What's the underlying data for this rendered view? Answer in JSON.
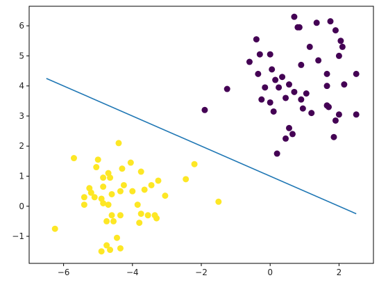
{
  "chart_data": {
    "type": "scatter",
    "title": "",
    "xlabel": "",
    "ylabel": "",
    "xlim": [
      -7.0,
      3.0
    ],
    "ylim": [
      -1.9,
      6.65
    ],
    "x_ticks": [
      -6,
      -4,
      -2,
      0,
      2
    ],
    "x_tick_labels": [
      "−6",
      "−4",
      "−2",
      "0",
      "2"
    ],
    "y_ticks": [
      -1,
      0,
      1,
      2,
      3,
      4,
      5,
      6
    ],
    "y_tick_labels": [
      "−1",
      "0",
      "1",
      "2",
      "3",
      "4",
      "5",
      "6"
    ],
    "grid": false,
    "legend": "none",
    "series": [
      {
        "color": "#440154",
        "marker": "circle",
        "points": [
          [
            0.7,
            6.3
          ],
          [
            1.75,
            6.15
          ],
          [
            1.35,
            6.1
          ],
          [
            0.8,
            5.95
          ],
          [
            0.85,
            5.95
          ],
          [
            1.9,
            5.85
          ],
          [
            -0.4,
            5.55
          ],
          [
            2.05,
            5.5
          ],
          [
            2.1,
            5.3
          ],
          [
            1.15,
            5.3
          ],
          [
            -0.3,
            5.05
          ],
          [
            0.0,
            5.05
          ],
          [
            2.0,
            5.0
          ],
          [
            -0.6,
            4.8
          ],
          [
            1.4,
            4.85
          ],
          [
            0.9,
            4.7
          ],
          [
            0.05,
            4.55
          ],
          [
            -0.35,
            4.4
          ],
          [
            0.35,
            4.3
          ],
          [
            1.65,
            4.4
          ],
          [
            2.5,
            4.4
          ],
          [
            0.15,
            4.2
          ],
          [
            0.55,
            4.05
          ],
          [
            -0.15,
            3.95
          ],
          [
            0.25,
            3.95
          ],
          [
            1.65,
            4.0
          ],
          [
            2.15,
            4.05
          ],
          [
            -1.25,
            3.9
          ],
          [
            0.7,
            3.8
          ],
          [
            1.05,
            3.75
          ],
          [
            0.45,
            3.6
          ],
          [
            0.9,
            3.55
          ],
          [
            0.0,
            3.45
          ],
          [
            -0.25,
            3.55
          ],
          [
            1.65,
            3.35
          ],
          [
            1.7,
            3.3
          ],
          [
            0.95,
            3.25
          ],
          [
            -1.9,
            3.2
          ],
          [
            0.1,
            3.15
          ],
          [
            1.2,
            3.1
          ],
          [
            2.0,
            3.05
          ],
          [
            2.5,
            3.05
          ],
          [
            1.9,
            2.85
          ],
          [
            0.55,
            2.6
          ],
          [
            0.65,
            2.4
          ],
          [
            1.85,
            2.3
          ],
          [
            0.45,
            2.25
          ],
          [
            0.2,
            1.75
          ]
        ]
      },
      {
        "color": "#fde725",
        "marker": "circle",
        "points": [
          [
            -4.4,
            2.1
          ],
          [
            -5.7,
            1.6
          ],
          [
            -5.0,
            1.55
          ],
          [
            -4.05,
            1.45
          ],
          [
            -2.2,
            1.4
          ],
          [
            -5.05,
            1.3
          ],
          [
            -4.3,
            1.25
          ],
          [
            -3.75,
            1.15
          ],
          [
            -4.7,
            1.1
          ],
          [
            -4.65,
            0.95
          ],
          [
            -4.85,
            0.95
          ],
          [
            -3.25,
            0.85
          ],
          [
            -2.45,
            0.9
          ],
          [
            -3.45,
            0.7
          ],
          [
            -4.25,
            0.7
          ],
          [
            -4.85,
            0.65
          ],
          [
            -5.25,
            0.6
          ],
          [
            -5.2,
            0.45
          ],
          [
            -3.65,
            0.55
          ],
          [
            -4.0,
            0.5
          ],
          [
            -4.35,
            0.5
          ],
          [
            -5.4,
            0.3
          ],
          [
            -5.1,
            0.3
          ],
          [
            -4.9,
            0.25
          ],
          [
            -4.6,
            0.4
          ],
          [
            -3.05,
            0.35
          ],
          [
            -1.5,
            0.15
          ],
          [
            -5.4,
            0.05
          ],
          [
            -4.85,
            0.1
          ],
          [
            -4.7,
            0.05
          ],
          [
            -3.85,
            0.05
          ],
          [
            -3.75,
            -0.25
          ],
          [
            -3.55,
            -0.3
          ],
          [
            -3.35,
            -0.3
          ],
          [
            -3.3,
            -0.4
          ],
          [
            -4.6,
            -0.3
          ],
          [
            -4.35,
            -0.3
          ],
          [
            -4.75,
            -0.5
          ],
          [
            -4.55,
            -0.5
          ],
          [
            -3.8,
            -0.55
          ],
          [
            -6.25,
            -0.75
          ],
          [
            -4.45,
            -1.05
          ],
          [
            -4.75,
            -1.3
          ],
          [
            -4.65,
            -1.45
          ],
          [
            -4.35,
            -1.4
          ],
          [
            -4.9,
            -1.5
          ]
        ]
      }
    ],
    "lines": [
      {
        "color": "#1f77b4",
        "points": [
          [
            -6.5,
            4.25
          ],
          [
            2.5,
            -0.25
          ]
        ]
      }
    ]
  }
}
